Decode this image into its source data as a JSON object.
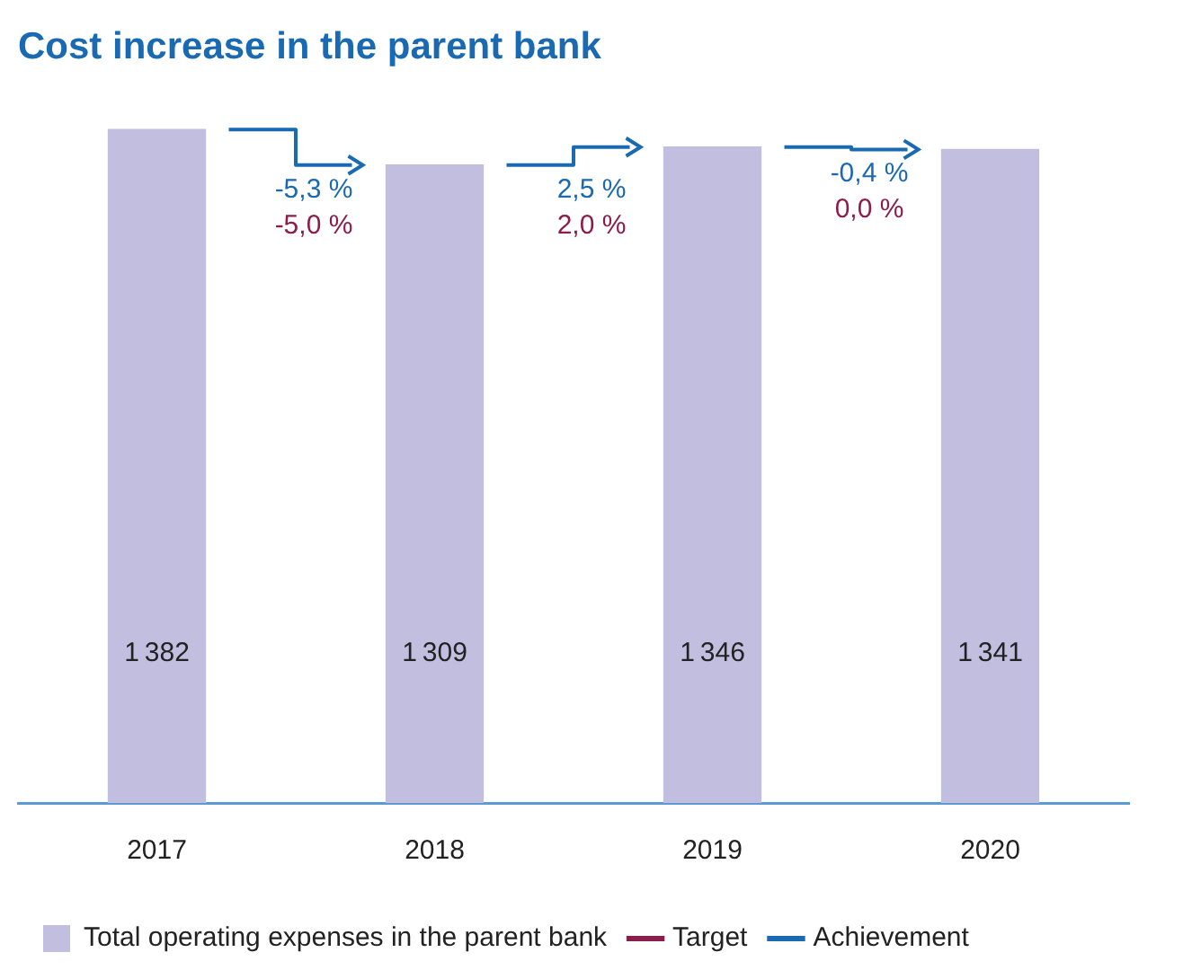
{
  "chart_data": {
    "type": "bar",
    "title": "Cost increase in the parent bank",
    "categories": [
      "2017",
      "2018",
      "2019",
      "2020"
    ],
    "series": [
      {
        "name": "Total operating expenses in the parent bank",
        "color": "#c1bee0",
        "values": [
          1382,
          1309,
          1346,
          1341
        ]
      },
      {
        "name": "Target",
        "color": "#8c1c4c",
        "type": "line",
        "values": [
          null,
          null,
          null,
          null
        ]
      },
      {
        "name": "Achievement",
        "color": "#1a6ab3",
        "type": "line",
        "values": [
          null,
          null,
          null,
          null
        ]
      }
    ],
    "tick_labels": "x",
    "data_labels": true,
    "grid": false,
    "legend": "bottom left",
    "annotations": [
      "-5,3 %",
      "-5,0 %",
      "2,5 %",
      "2,0 %",
      "-0,4 %",
      "0,0 %"
    ]
  }
}
